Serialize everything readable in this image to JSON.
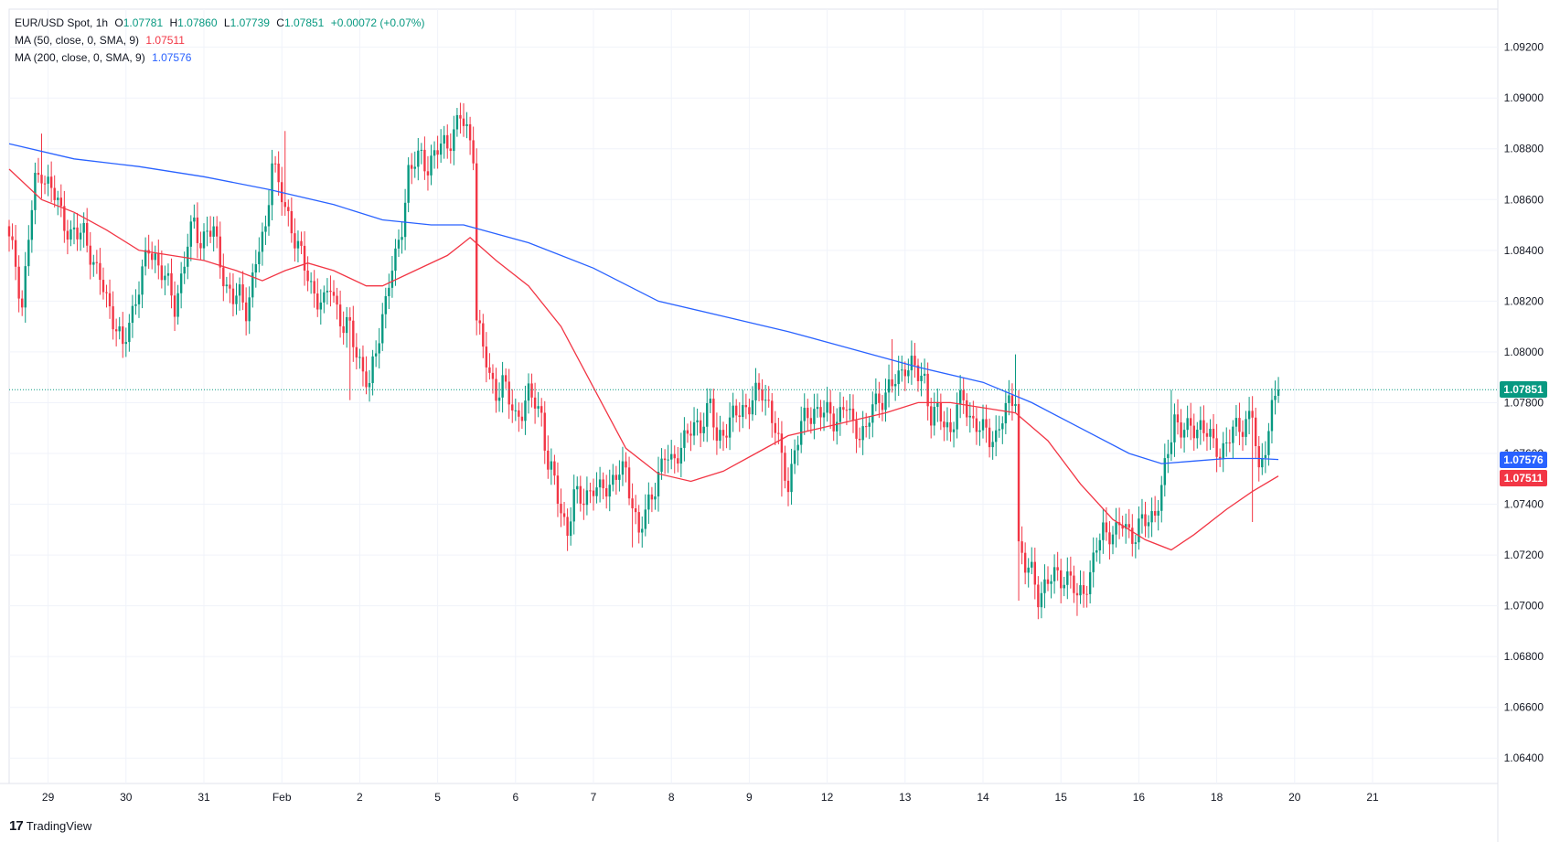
{
  "legend": {
    "symbol": "EUR/USD Spot, 1h",
    "ohlc_label_o": "O",
    "ohlc_o": "1.07781",
    "ohlc_label_h": "H",
    "ohlc_h": "1.07860",
    "ohlc_label_l": "L",
    "ohlc_l": "1.07739",
    "ohlc_label_c": "C",
    "ohlc_c": "1.07851",
    "change": "+0.00072 (+0.07%)",
    "ma50_label": "MA (50, close, 0, SMA, 9)",
    "ma50_value": "1.07511",
    "ma200_label": "MA (200, close, 0, SMA, 9)",
    "ma200_value": "1.07576"
  },
  "price_tags": {
    "last": "1.07851",
    "ma200": "1.07576",
    "ma50": "1.07511"
  },
  "brand": {
    "logo": "17",
    "name": "TradingView"
  },
  "colors": {
    "up": "#089981",
    "down": "#f23645",
    "ma50": "#f23645",
    "ma200": "#2962ff",
    "grid": "#f0f3fa",
    "text": "#131722"
  },
  "chart_data": {
    "type": "candlestick",
    "interval": "1h",
    "y_axis": {
      "ylim": [
        1.063,
        1.0935
      ],
      "ticks": [
        "1.09200",
        "1.09000",
        "1.08800",
        "1.08600",
        "1.08400",
        "1.08200",
        "1.08000",
        "1.07800",
        "1.07600",
        "1.07400",
        "1.07200",
        "1.07000",
        "1.06800",
        "1.06600",
        "1.06400"
      ]
    },
    "x_axis": {
      "tick_labels": [
        "29",
        "30",
        "31",
        "Feb",
        "2",
        "5",
        "6",
        "7",
        "8",
        "9",
        "12",
        "13",
        "14",
        "15",
        "16",
        "18",
        "20",
        "21"
      ]
    },
    "last_price": 1.07851,
    "ma50_last": 1.07511,
    "ma200_last": 1.07576,
    "close_path": [
      [
        0,
        1.0843
      ],
      [
        2,
        1.0835
      ],
      [
        4,
        1.0818
      ],
      [
        6,
        1.0845
      ],
      [
        8,
        1.0866
      ],
      [
        10,
        1.0872
      ],
      [
        12,
        1.0866
      ],
      [
        15,
        1.0858
      ],
      [
        17,
        1.0852
      ],
      [
        19,
        1.0846
      ],
      [
        21,
        1.0845
      ],
      [
        23,
        1.0848
      ],
      [
        25,
        1.084
      ],
      [
        27,
        1.083
      ],
      [
        29,
        1.0825
      ],
      [
        31,
        1.0818
      ],
      [
        33,
        1.081
      ],
      [
        35,
        1.08
      ],
      [
        37,
        1.0812
      ],
      [
        39,
        1.0822
      ],
      [
        41,
        1.083
      ],
      [
        43,
        1.084
      ],
      [
        45,
        1.0838
      ],
      [
        47,
        1.0832
      ],
      [
        49,
        1.0825
      ],
      [
        51,
        1.0818
      ],
      [
        53,
        1.083
      ],
      [
        55,
        1.0842
      ],
      [
        57,
        1.085
      ],
      [
        59,
        1.0844
      ],
      [
        61,
        1.0848
      ],
      [
        63,
        1.0846
      ],
      [
        65,
        1.0836
      ],
      [
        67,
        1.0826
      ],
      [
        69,
        1.082
      ],
      [
        71,
        1.0822
      ],
      [
        73,
        1.0818
      ],
      [
        75,
        1.0828
      ],
      [
        77,
        1.084
      ],
      [
        79,
        1.0848
      ],
      [
        81,
        1.0878
      ],
      [
        83,
        1.0864
      ],
      [
        85,
        1.0856
      ],
      [
        87,
        1.085
      ],
      [
        89,
        1.0842
      ],
      [
        91,
        1.0832
      ],
      [
        93,
        1.0826
      ],
      [
        95,
        1.0822
      ],
      [
        97,
        1.0818
      ],
      [
        99,
        1.0826
      ],
      [
        101,
        1.0818
      ],
      [
        103,
        1.081
      ],
      [
        105,
        1.0808
      ],
      [
        107,
        1.08
      ],
      [
        109,
        1.0794
      ],
      [
        111,
        1.0785
      ],
      [
        113,
        1.08
      ],
      [
        115,
        1.0815
      ],
      [
        117,
        1.0828
      ],
      [
        119,
        1.0835
      ],
      [
        121,
        1.085
      ],
      [
        123,
        1.0872
      ],
      [
        125,
        1.0874
      ],
      [
        127,
        1.0876
      ],
      [
        129,
        1.0874
      ],
      [
        131,
        1.0878
      ],
      [
        133,
        1.088
      ],
      [
        135,
        1.0882
      ],
      [
        137,
        1.0888
      ],
      [
        139,
        1.0892
      ],
      [
        141,
        1.0886
      ],
      [
        143,
        1.088
      ],
      [
        144,
        1.0815
      ],
      [
        146,
        1.08
      ],
      [
        148,
        1.079
      ],
      [
        150,
        1.0785
      ],
      [
        152,
        1.0788
      ],
      [
        154,
        1.078
      ],
      [
        156,
        1.0775
      ],
      [
        158,
        1.0778
      ],
      [
        160,
        1.0782
      ],
      [
        162,
        1.078
      ],
      [
        164,
        1.0776
      ],
      [
        166,
        1.0755
      ],
      [
        168,
        1.0748
      ],
      [
        170,
        1.0738
      ],
      [
        172,
        1.073
      ],
      [
        174,
        1.0742
      ],
      [
        176,
        1.0742
      ],
      [
        178,
        1.0745
      ],
      [
        180,
        1.0746
      ],
      [
        182,
        1.0744
      ],
      [
        184,
        1.0748
      ],
      [
        186,
        1.075
      ],
      [
        188,
        1.0752
      ],
      [
        190,
        1.0752
      ],
      [
        192,
        1.0742
      ],
      [
        194,
        1.0728
      ],
      [
        196,
        1.0735
      ],
      [
        198,
        1.0745
      ],
      [
        200,
        1.0752
      ],
      [
        202,
        1.0758
      ],
      [
        204,
        1.0756
      ],
      [
        206,
        1.0762
      ],
      [
        208,
        1.0765
      ],
      [
        210,
        1.0768
      ],
      [
        212,
        1.0772
      ],
      [
        214,
        1.0774
      ],
      [
        216,
        1.0778
      ],
      [
        218,
        1.0765
      ],
      [
        220,
        1.077
      ],
      [
        222,
        1.0772
      ],
      [
        224,
        1.0775
      ],
      [
        226,
        1.0778
      ],
      [
        228,
        1.078
      ],
      [
        230,
        1.0782
      ],
      [
        232,
        1.0784
      ],
      [
        234,
        1.078
      ],
      [
        236,
        1.077
      ],
      [
        238,
        1.0756
      ],
      [
        240,
        1.0748
      ],
      [
        242,
        1.0762
      ],
      [
        244,
        1.077
      ],
      [
        246,
        1.0775
      ],
      [
        248,
        1.0778
      ],
      [
        250,
        1.0776
      ],
      [
        252,
        1.0775
      ],
      [
        254,
        1.0774
      ],
      [
        256,
        1.0776
      ],
      [
        258,
        1.0778
      ],
      [
        260,
        1.077
      ],
      [
        262,
        1.077
      ],
      [
        264,
        1.0768
      ],
      [
        266,
        1.0778
      ],
      [
        268,
        1.0782
      ],
      [
        270,
        1.0784
      ],
      [
        272,
        1.0786
      ],
      [
        274,
        1.079
      ],
      [
        276,
        1.0796
      ],
      [
        278,
        1.0794
      ],
      [
        280,
        1.079
      ],
      [
        282,
        1.079
      ],
      [
        284,
        1.0775
      ],
      [
        286,
        1.0775
      ],
      [
        288,
        1.0772
      ],
      [
        290,
        1.077
      ],
      [
        292,
        1.0778
      ],
      [
        294,
        1.078
      ],
      [
        296,
        1.0775
      ],
      [
        298,
        1.0772
      ],
      [
        300,
        1.0768
      ],
      [
        302,
        1.0766
      ],
      [
        304,
        1.0768
      ],
      [
        306,
        1.0774
      ],
      [
        308,
        1.0778
      ],
      [
        310,
        1.0784
      ],
      [
        311,
        1.0725
      ],
      [
        313,
        1.0715
      ],
      [
        315,
        1.0712
      ],
      [
        317,
        1.0705
      ],
      [
        319,
        1.0708
      ],
      [
        321,
        1.071
      ],
      [
        323,
        1.0712
      ],
      [
        325,
        1.0712
      ],
      [
        327,
        1.071
      ],
      [
        329,
        1.0702
      ],
      [
        331,
        1.0708
      ],
      [
        333,
        1.0712
      ],
      [
        335,
        1.0722
      ],
      [
        337,
        1.073
      ],
      [
        339,
        1.073
      ],
      [
        341,
        1.0728
      ],
      [
        343,
        1.0732
      ],
      [
        345,
        1.073
      ],
      [
        347,
        1.0728
      ],
      [
        349,
        1.0732
      ],
      [
        351,
        1.0734
      ],
      [
        353,
        1.0738
      ],
      [
        355,
        1.0745
      ],
      [
        357,
        1.076
      ],
      [
        359,
        1.0775
      ],
      [
        361,
        1.077
      ],
      [
        363,
        1.0768
      ],
      [
        365,
        1.077
      ],
      [
        367,
        1.0772
      ],
      [
        369,
        1.0768
      ],
      [
        371,
        1.0762
      ],
      [
        373,
        1.0762
      ],
      [
        375,
        1.0764
      ],
      [
        377,
        1.0768
      ],
      [
        379,
        1.077
      ],
      [
        381,
        1.0774
      ],
      [
        383,
        1.0775
      ],
      [
        385,
        1.075
      ],
      [
        387,
        1.0765
      ],
      [
        389,
        1.0778
      ],
      [
        391,
        1.0785
      ]
    ],
    "ma50_path": [
      [
        0,
        1.0872
      ],
      [
        10,
        1.086
      ],
      [
        20,
        1.0855
      ],
      [
        30,
        1.0848
      ],
      [
        40,
        1.084
      ],
      [
        50,
        1.0838
      ],
      [
        60,
        1.0836
      ],
      [
        70,
        1.0832
      ],
      [
        78,
        1.0828
      ],
      [
        85,
        1.0832
      ],
      [
        92,
        1.0835
      ],
      [
        100,
        1.0832
      ],
      [
        110,
        1.0826
      ],
      [
        115,
        1.0826
      ],
      [
        125,
        1.0832
      ],
      [
        135,
        1.0838
      ],
      [
        142,
        1.0845
      ],
      [
        150,
        1.0836
      ],
      [
        160,
        1.0826
      ],
      [
        170,
        1.081
      ],
      [
        180,
        1.0786
      ],
      [
        190,
        1.0762
      ],
      [
        200,
        1.0752
      ],
      [
        210,
        1.0749
      ],
      [
        220,
        1.0753
      ],
      [
        230,
        1.076
      ],
      [
        240,
        1.0767
      ],
      [
        250,
        1.077
      ],
      [
        260,
        1.0773
      ],
      [
        270,
        1.0776
      ],
      [
        280,
        1.078
      ],
      [
        290,
        1.078
      ],
      [
        300,
        1.0778
      ],
      [
        310,
        1.0776
      ],
      [
        320,
        1.0765
      ],
      [
        330,
        1.0748
      ],
      [
        340,
        1.0734
      ],
      [
        350,
        1.0726
      ],
      [
        358,
        1.0722
      ],
      [
        365,
        1.0728
      ],
      [
        375,
        1.0738
      ],
      [
        383,
        1.0745
      ],
      [
        391,
        1.07511
      ]
    ],
    "ma200_path": [
      [
        0,
        1.0882
      ],
      [
        20,
        1.0876
      ],
      [
        40,
        1.0873
      ],
      [
        60,
        1.0869
      ],
      [
        80,
        1.0864
      ],
      [
        100,
        1.0858
      ],
      [
        115,
        1.0852
      ],
      [
        130,
        1.085
      ],
      [
        140,
        1.085
      ],
      [
        160,
        1.0843
      ],
      [
        180,
        1.0833
      ],
      [
        200,
        1.082
      ],
      [
        220,
        1.0814
      ],
      [
        240,
        1.0808
      ],
      [
        260,
        1.0801
      ],
      [
        280,
        1.0794
      ],
      [
        300,
        1.0788
      ],
      [
        315,
        1.078
      ],
      [
        330,
        1.077
      ],
      [
        345,
        1.076
      ],
      [
        355,
        1.0756
      ],
      [
        365,
        1.0757
      ],
      [
        375,
        1.0758
      ],
      [
        385,
        1.0758
      ],
      [
        391,
        1.07576
      ]
    ],
    "day_starts": {
      "29": 12,
      "30": 36,
      "31": 60,
      "Feb": 84,
      "2": 108,
      "5": 132,
      "6": 156,
      "7": 180,
      "8": 204,
      "9": 228,
      "12": 252,
      "13": 276,
      "14": 300,
      "15": 324,
      "16": 348,
      "18": 372,
      "20": 396,
      "21": 420
    },
    "spikes": [
      {
        "i": 10,
        "hi": 1.0886
      },
      {
        "i": 85,
        "hi": 1.0887
      },
      {
        "i": 139,
        "hi": 1.0898
      },
      {
        "i": 272,
        "hi": 1.0805
      },
      {
        "i": 310,
        "hi": 1.0799
      },
      {
        "i": 311,
        "lo": 1.0702
      },
      {
        "i": 329,
        "lo": 1.0696
      },
      {
        "i": 358,
        "hi": 1.0785
      },
      {
        "i": 383,
        "lo": 1.0733
      },
      {
        "i": 105,
        "lo": 1.0781
      },
      {
        "i": 172,
        "lo": 1.0723
      },
      {
        "i": 192,
        "lo": 1.0723
      },
      {
        "i": 238,
        "lo": 1.0743
      }
    ]
  }
}
